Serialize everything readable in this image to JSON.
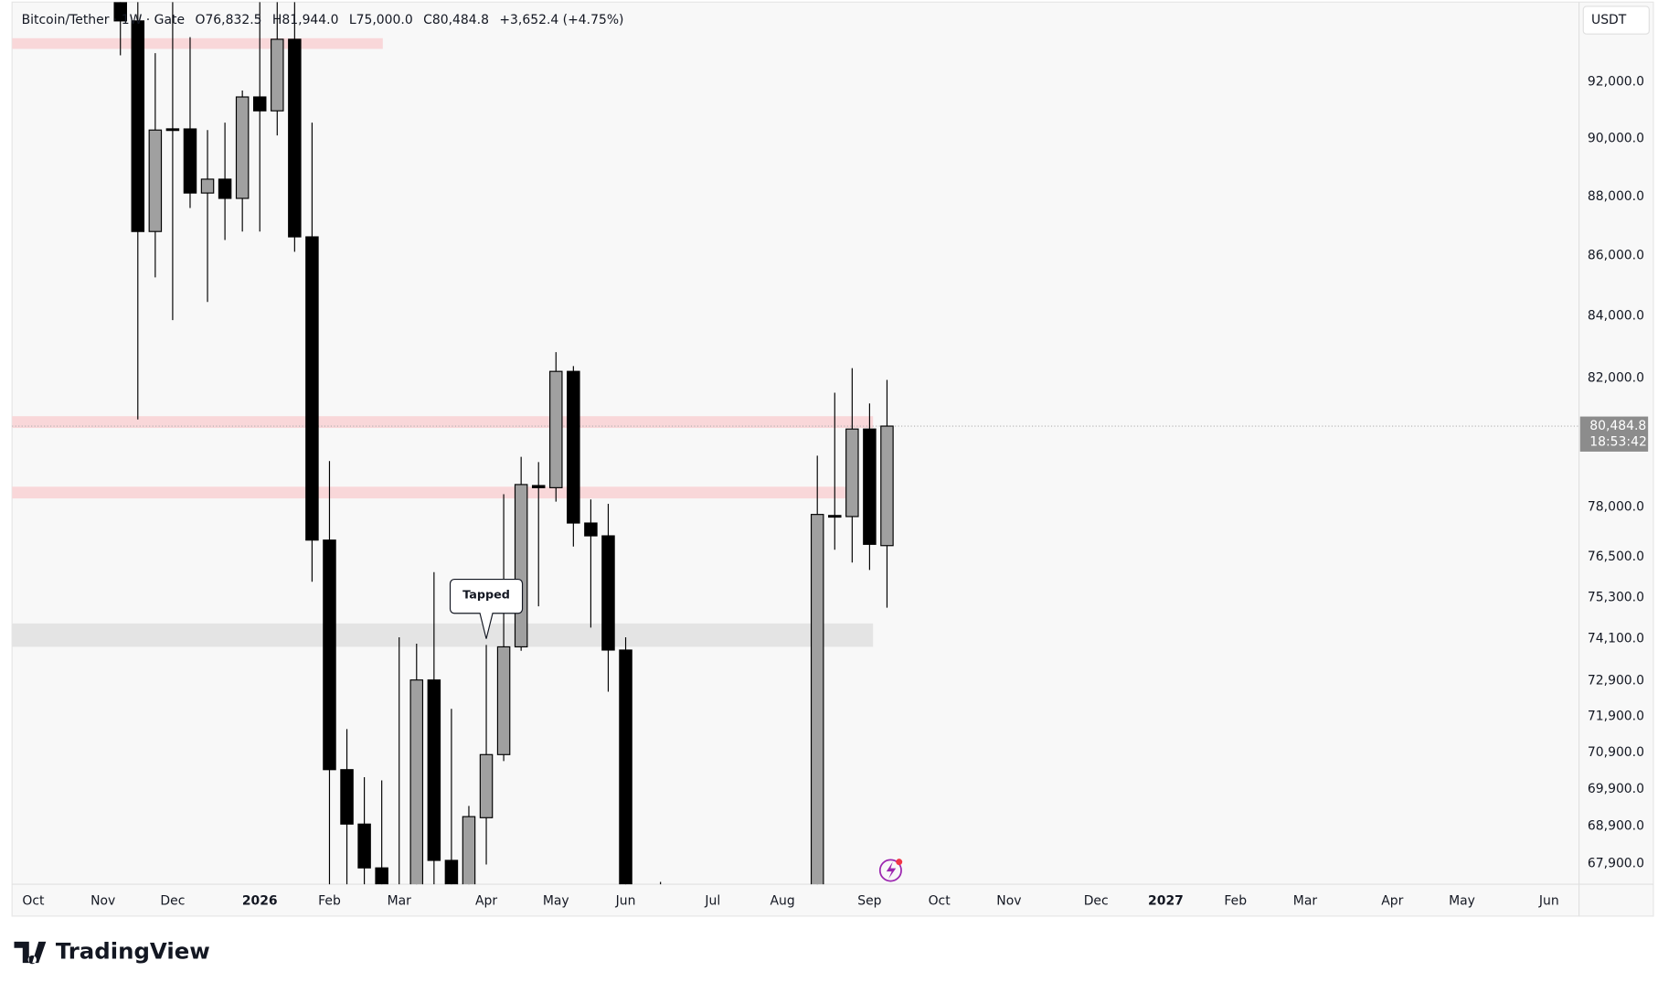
{
  "chart_data": {
    "type": "candlestick",
    "header": {
      "symbol": "Bitcoin/Tether · 1W · Gate",
      "open": "O76,832.5",
      "high": "H81,944.0",
      "low": "L75,000.0",
      "close": "C80,484.8",
      "change": "+3,652.4 (+4.75%)"
    },
    "currency": "USDT",
    "log_scale": true,
    "up_color": "#a0a0a0",
    "down_color": "#000000",
    "xlim": [
      -1.22,
      88.72
    ],
    "xticks": [
      {
        "value": 0,
        "label": "Oct"
      },
      {
        "value": 4,
        "label": "Nov"
      },
      {
        "value": 8,
        "label": "Dec"
      },
      {
        "value": 13,
        "label": "2026"
      },
      {
        "value": 17,
        "label": "Feb"
      },
      {
        "value": 21,
        "label": "Mar"
      },
      {
        "value": 26,
        "label": "Apr"
      },
      {
        "value": 30,
        "label": "May"
      },
      {
        "value": 34,
        "label": "Jun"
      },
      {
        "value": 39,
        "label": "Jul"
      },
      {
        "value": 43,
        "label": "Aug"
      },
      {
        "value": 48,
        "label": "Sep"
      },
      {
        "value": 52,
        "label": "Oct"
      },
      {
        "value": 56,
        "label": "Nov"
      },
      {
        "value": 61,
        "label": "Dec"
      },
      {
        "value": 65,
        "label": "2027"
      },
      {
        "value": 69,
        "label": "Feb"
      },
      {
        "value": 73,
        "label": "Mar"
      },
      {
        "value": 78,
        "label": "Apr"
      },
      {
        "value": 82,
        "label": "May"
      },
      {
        "value": 87,
        "label": "Jun"
      }
    ],
    "ylim": [
      67360,
      94900
    ],
    "yticks": [
      {
        "value": 92000,
        "label": "92,000.0"
      },
      {
        "value": 90000,
        "label": "90,000.0"
      },
      {
        "value": 88000,
        "label": "88,000.0"
      },
      {
        "value": 86000,
        "label": "86,000.0"
      },
      {
        "value": 84000,
        "label": "84,000.0"
      },
      {
        "value": 82000,
        "label": "82,000.0"
      },
      {
        "value": 78000,
        "label": "78,000.0"
      },
      {
        "value": 76500,
        "label": "76,500.0"
      },
      {
        "value": 75300,
        "label": "75,300.0"
      },
      {
        "value": 74100,
        "label": "74,100.0"
      },
      {
        "value": 72900,
        "label": "72,900.0"
      },
      {
        "value": 71900,
        "label": "71,900.0"
      },
      {
        "value": 70900,
        "label": "70,900.0"
      },
      {
        "value": 69900,
        "label": "69,900.0"
      },
      {
        "value": 68900,
        "label": "68,900.0"
      },
      {
        "value": 67900,
        "label": "67,900.0"
      }
    ],
    "candles": [
      {
        "x": 5,
        "open": 94990,
        "high": 94990,
        "low": 92960,
        "close": 94210
      },
      {
        "x": 6,
        "open": 94210,
        "high": 95200,
        "low": 80695,
        "close": 86807
      },
      {
        "x": 7,
        "open": 86807,
        "high": 93035,
        "low": 85273,
        "close": 90298
      },
      {
        "x": 8,
        "open": 90340,
        "high": 95000,
        "low": 83869,
        "close": 90300
      },
      {
        "x": 9,
        "open": 90337,
        "high": 93618,
        "low": 87604,
        "close": 88115
      },
      {
        "x": 10,
        "open": 88115,
        "high": 90298,
        "low": 84462,
        "close": 88591
      },
      {
        "x": 11,
        "open": 88591,
        "high": 90560,
        "low": 86520,
        "close": 87932
      },
      {
        "x": 12,
        "open": 87932,
        "high": 91695,
        "low": 86807,
        "close": 91467
      },
      {
        "x": 13,
        "open": 91467,
        "high": 95000,
        "low": 86807,
        "close": 90975
      },
      {
        "x": 14,
        "open": 90975,
        "high": 95200,
        "low": 90111,
        "close": 93540
      },
      {
        "x": 15,
        "open": 93540,
        "high": 95100,
        "low": 86127,
        "close": 86627
      },
      {
        "x": 16,
        "open": 86627,
        "high": 90560,
        "low": 75762,
        "close": 76998
      },
      {
        "x": 17,
        "open": 76998,
        "high": 79399,
        "low": 67000,
        "close": 70427
      },
      {
        "x": 18,
        "open": 70427,
        "high": 71546,
        "low": 66800,
        "close": 68953
      },
      {
        "x": 19,
        "open": 68953,
        "high": 70222,
        "low": 66900,
        "close": 67789
      },
      {
        "x": 20,
        "open": 67789,
        "high": 70133,
        "low": 66500,
        "close": 67000
      },
      {
        "x": 21,
        "open": 66200,
        "high": 74145,
        "low": 66000,
        "close": 67200
      },
      {
        "x": 22,
        "open": 66800,
        "high": 73961,
        "low": 66000,
        "close": 72924
      },
      {
        "x": 23,
        "open": 72924,
        "high": 76045,
        "low": 66700,
        "close": 67987
      },
      {
        "x": 24,
        "open": 67987,
        "high": 72111,
        "low": 66500,
        "close": 67000
      },
      {
        "x": 25,
        "open": 67000,
        "high": 69441,
        "low": 66700,
        "close": 69153
      },
      {
        "x": 26,
        "open": 69124,
        "high": 73922,
        "low": 67877,
        "close": 70840
      },
      {
        "x": 27,
        "open": 70840,
        "high": 78384,
        "low": 70663,
        "close": 73869
      },
      {
        "x": 28,
        "open": 73869,
        "high": 79531,
        "low": 73755,
        "close": 78678
      },
      {
        "x": 29,
        "open": 78647,
        "high": 79366,
        "low": 75043,
        "close": 78582
      },
      {
        "x": 30,
        "open": 78582,
        "high": 82831,
        "low": 78157,
        "close": 82215
      },
      {
        "x": 31,
        "open": 82215,
        "high": 82386,
        "low": 76806,
        "close": 77510
      },
      {
        "x": 32,
        "open": 77510,
        "high": 78222,
        "low": 74424,
        "close": 77125
      },
      {
        "x": 33,
        "open": 77125,
        "high": 78092,
        "low": 72592,
        "close": 73777
      },
      {
        "x": 34,
        "open": 73777,
        "high": 74145,
        "low": 66500,
        "close": 66800
      },
      {
        "x": 36,
        "open": 66000,
        "high": 67422,
        "low": 65500,
        "close": 66500
      },
      {
        "x": 45,
        "open": 66800,
        "high": 79564,
        "low": 66000,
        "close": 77769
      },
      {
        "x": 46,
        "open": 77737,
        "high": 81536,
        "low": 76710,
        "close": 77705
      },
      {
        "x": 47,
        "open": 77705,
        "high": 82318,
        "low": 76330,
        "close": 80394
      },
      {
        "x": 48,
        "open": 80394,
        "high": 81198,
        "low": 76109,
        "close": 76871
      },
      {
        "x": 49,
        "open": 76832.5,
        "high": 81944.0,
        "low": 75000.0,
        "close": 80484.8
      }
    ],
    "zones": [
      {
        "from": 93191,
        "to": 93579,
        "end": 20.06,
        "color": "#f9d7d9"
      },
      {
        "from": 80427,
        "to": 80795,
        "end": 48.2,
        "color": "#f9d7d9"
      },
      {
        "from": 78254,
        "to": 78612,
        "end": 46.9,
        "color": "#f9d7d9"
      },
      {
        "from": 73869,
        "to": 74544,
        "end": 48.2,
        "color": "#e4e4e4"
      }
    ],
    "last_price": {
      "value": 80484.8,
      "label": "80,484.8",
      "countdown": "18:53:42"
    },
    "annotation": {
      "text": "Tapped",
      "x": 26,
      "y": 74100
    },
    "brand": "TradingView"
  }
}
